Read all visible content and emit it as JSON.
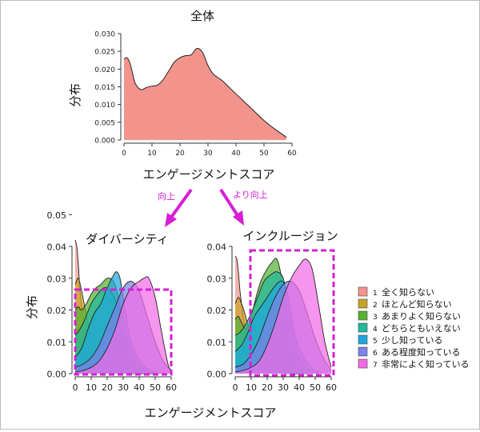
{
  "arrows": [
    {
      "label": "向上",
      "color": "#d61fd6"
    },
    {
      "label": "より向上",
      "color": "#d61fd6"
    }
  ],
  "highlight_color": "#d61fd6",
  "legend": [
    {
      "num": "1",
      "label": "全く知らない",
      "color": "#f3948c"
    },
    {
      "num": "2",
      "label": "ほとんど知らない",
      "color": "#c9a227"
    },
    {
      "num": "3",
      "label": "あまりよく知らない",
      "color": "#55b233"
    },
    {
      "num": "4",
      "label": "どちらともいえない",
      "color": "#21b89b"
    },
    {
      "num": "5",
      "label": "少し知っている",
      "color": "#1ea7de"
    },
    {
      "num": "6",
      "label": "ある程度知っている",
      "color": "#7c82e8"
    },
    {
      "num": "7",
      "label": "非常によく知っている",
      "color": "#f36ce6"
    }
  ],
  "chart_data": [
    {
      "type": "area",
      "title": "全体",
      "xlabel": "エンゲージメントスコア",
      "ylabel": "分布",
      "xlim": [
        0,
        60
      ],
      "ylim": [
        0,
        0.03
      ],
      "xticks": [
        "0",
        "10",
        "20",
        "30",
        "40",
        "50",
        "60"
      ],
      "yticks": [
        "0.000",
        "0.005",
        "0.010",
        "0.015",
        "0.020",
        "0.025",
        "0.030"
      ],
      "fill": "#f3948c",
      "series": [
        {
          "x": [
            0,
            1,
            2,
            3,
            4,
            6,
            8,
            10,
            12,
            14,
            16,
            18,
            20,
            22,
            24,
            26,
            28,
            30,
            32,
            35,
            38,
            42,
            46,
            50,
            54,
            58
          ],
          "y": [
            0.0228,
            0.0232,
            0.022,
            0.019,
            0.016,
            0.0142,
            0.0148,
            0.0152,
            0.0155,
            0.017,
            0.0195,
            0.022,
            0.0232,
            0.0238,
            0.024,
            0.0258,
            0.0248,
            0.021,
            0.0185,
            0.0168,
            0.0145,
            0.0115,
            0.0085,
            0.0055,
            0.003,
            0.0008
          ]
        }
      ]
    },
    {
      "type": "area",
      "title": "ダイバーシティ",
      "xlabel": "",
      "ylabel": "",
      "xlim": [
        0,
        60
      ],
      "ylim": [
        0,
        0.04
      ],
      "xticks": [
        "0",
        "10",
        "20",
        "30",
        "40",
        "50",
        "60"
      ],
      "yticks": [
        "0.00",
        "0.01",
        "0.02",
        "0.03",
        "0.04",
        "0.05"
      ],
      "series": [
        {
          "x": [
            0,
            1,
            2,
            3,
            5,
            8,
            12,
            16,
            20,
            25,
            30,
            40,
            50
          ],
          "y": [
            0.042,
            0.04,
            0.034,
            0.026,
            0.018,
            0.01,
            0.005,
            0.0025,
            0.001,
            0.0003,
            0.0001,
            0,
            0
          ]
        },
        {
          "x": [
            0,
            2,
            4,
            6,
            8,
            10,
            14,
            18,
            22,
            28,
            35,
            45
          ],
          "y": [
            0.028,
            0.03,
            0.026,
            0.021,
            0.016,
            0.012,
            0.006,
            0.003,
            0.0015,
            0.0005,
            0.0002,
            0
          ]
        },
        {
          "x": [
            0,
            2,
            4,
            7,
            10,
            13,
            16,
            20,
            24,
            27,
            30,
            34,
            38,
            44,
            50
          ],
          "y": [
            0.02,
            0.021,
            0.02,
            0.022,
            0.025,
            0.027,
            0.028,
            0.03,
            0.029,
            0.024,
            0.016,
            0.008,
            0.003,
            0.001,
            0
          ]
        },
        {
          "x": [
            0,
            3,
            6,
            10,
            14,
            18,
            22,
            26,
            30,
            34,
            38,
            44,
            52
          ],
          "y": [
            0.012,
            0.014,
            0.017,
            0.022,
            0.025,
            0.027,
            0.026,
            0.022,
            0.016,
            0.009,
            0.004,
            0.001,
            0
          ]
        },
        {
          "x": [
            0,
            4,
            8,
            12,
            16,
            20,
            24,
            26,
            28,
            30,
            34,
            38,
            44,
            50,
            55
          ],
          "y": [
            0.005,
            0.008,
            0.014,
            0.019,
            0.022,
            0.027,
            0.031,
            0.032,
            0.03,
            0.024,
            0.012,
            0.006,
            0.002,
            0.0005,
            0
          ]
        },
        {
          "x": [
            0,
            5,
            10,
            15,
            20,
            25,
            30,
            35,
            40,
            45,
            50,
            55,
            60
          ],
          "y": [
            0.002,
            0.003,
            0.005,
            0.009,
            0.015,
            0.021,
            0.027,
            0.029,
            0.026,
            0.018,
            0.01,
            0.004,
            0.001
          ]
        },
        {
          "x": [
            0,
            5,
            10,
            15,
            20,
            25,
            30,
            35,
            40,
            43,
            46,
            50,
            54,
            58,
            60
          ],
          "y": [
            0.0005,
            0.001,
            0.002,
            0.004,
            0.008,
            0.014,
            0.022,
            0.027,
            0.029,
            0.03,
            0.03,
            0.024,
            0.013,
            0.003,
            0.001
          ]
        }
      ]
    },
    {
      "type": "area",
      "title": "インクルージョン",
      "xlabel": "",
      "ylabel": "",
      "xlim": [
        0,
        60
      ],
      "ylim": [
        0,
        0.04
      ],
      "xticks": [
        "0",
        "10",
        "20",
        "30",
        "40",
        "50",
        "60"
      ],
      "yticks": [
        "0.00",
        "0.01",
        "0.02",
        "0.03",
        "0.04"
      ],
      "series": [
        {
          "x": [
            0,
            1,
            2,
            3,
            5,
            8,
            12,
            16,
            20,
            25,
            30,
            40
          ],
          "y": [
            0.037,
            0.036,
            0.032,
            0.026,
            0.018,
            0.01,
            0.005,
            0.0025,
            0.001,
            0.0003,
            0.0001,
            0
          ]
        },
        {
          "x": [
            0,
            2,
            4,
            6,
            8,
            10,
            14,
            18,
            22,
            28,
            35,
            45
          ],
          "y": [
            0.022,
            0.024,
            0.022,
            0.019,
            0.015,
            0.012,
            0.007,
            0.004,
            0.002,
            0.0006,
            0.0002,
            0
          ]
        },
        {
          "x": [
            0,
            2,
            4,
            7,
            10,
            13,
            16,
            20,
            23,
            26,
            29,
            32,
            35,
            40,
            46,
            52
          ],
          "y": [
            0.017,
            0.018,
            0.016,
            0.014,
            0.018,
            0.024,
            0.029,
            0.033,
            0.035,
            0.036,
            0.03,
            0.018,
            0.01,
            0.004,
            0.001,
            0
          ]
        },
        {
          "x": [
            0,
            3,
            6,
            10,
            14,
            18,
            22,
            26,
            30,
            33,
            36,
            40,
            46,
            52
          ],
          "y": [
            0.012,
            0.013,
            0.015,
            0.019,
            0.024,
            0.029,
            0.031,
            0.032,
            0.03,
            0.022,
            0.012,
            0.005,
            0.001,
            0
          ]
        },
        {
          "x": [
            0,
            4,
            8,
            12,
            16,
            20,
            24,
            28,
            31,
            34,
            38,
            44,
            50,
            56
          ],
          "y": [
            0.007,
            0.009,
            0.013,
            0.018,
            0.021,
            0.024,
            0.027,
            0.029,
            0.028,
            0.022,
            0.011,
            0.004,
            0.001,
            0
          ]
        },
        {
          "x": [
            0,
            5,
            10,
            15,
            20,
            25,
            30,
            35,
            40,
            45,
            50,
            55,
            60
          ],
          "y": [
            0.002,
            0.003,
            0.006,
            0.011,
            0.018,
            0.024,
            0.028,
            0.029,
            0.026,
            0.019,
            0.011,
            0.005,
            0.001
          ]
        },
        {
          "x": [
            0,
            5,
            10,
            15,
            20,
            25,
            30,
            35,
            40,
            44,
            48,
            52,
            56,
            60
          ],
          "y": [
            0.0005,
            0.001,
            0.002,
            0.004,
            0.009,
            0.016,
            0.024,
            0.03,
            0.034,
            0.036,
            0.033,
            0.022,
            0.01,
            0.002
          ]
        }
      ]
    }
  ],
  "shared_xlabel": "エンゲージメントスコア",
  "shared_ylabel": "分布"
}
